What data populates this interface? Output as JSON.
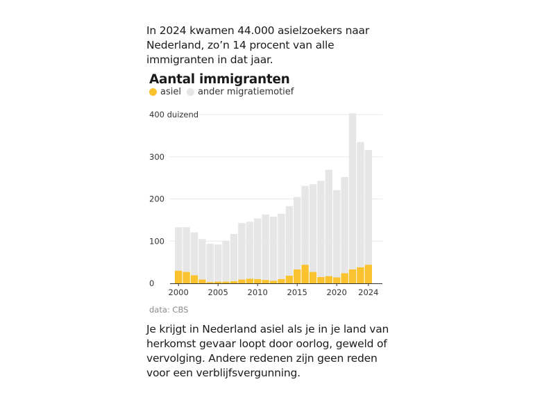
{
  "intro_text": "In 2024 kwamen 44.000 asielzoekers naar Nederland, zo’n 14 procent van alle immigranten in dat jaar.",
  "outro_text": "Je krijgt in Nederland asiel als je in je land van herkomst gevaar loopt door oorlog, geweld of vervolging. Andere redenen zijn geen reden voor een verblijfsvergunning.",
  "source": "data: CBS",
  "colors": {
    "asiel": "#f9c22e",
    "other": "#e6e6e6",
    "grid": "#e8e8e8",
    "axis": "#333333"
  },
  "chart_data": {
    "type": "bar",
    "stacked": true,
    "title": "Aantal immigranten",
    "xlabel": "",
    "ylabel": "",
    "y_unit_label": "duizend",
    "ylim": [
      0,
      400
    ],
    "yticks": [
      0,
      100,
      200,
      300,
      400
    ],
    "yticks_labels": [
      "0",
      "100",
      "200",
      "300",
      "400 duizend"
    ],
    "xticks": [
      2000,
      2005,
      2010,
      2015,
      2020,
      2024
    ],
    "grid": true,
    "legend_position": "top-left",
    "categories": [
      2000,
      2001,
      2002,
      2003,
      2004,
      2005,
      2006,
      2007,
      2008,
      2009,
      2010,
      2011,
      2012,
      2013,
      2014,
      2015,
      2016,
      2017,
      2018,
      2019,
      2020,
      2021,
      2022,
      2023,
      2024
    ],
    "series": [
      {
        "name": "asiel",
        "color": "#f9c22e",
        "values": [
          30,
          27,
          19,
          9,
          3,
          4,
          4,
          5,
          9,
          11,
          10,
          8,
          6,
          10,
          18,
          33,
          44,
          27,
          15,
          17,
          14,
          24,
          33,
          38,
          44
        ]
      },
      {
        "name": "ander migratiemotief",
        "color": "#e6e6e6",
        "values": [
          103,
          106,
          102,
          96,
          91,
          88,
          97,
          112,
          134,
          135,
          144,
          155,
          152,
          155,
          165,
          172,
          187,
          208,
          228,
          252,
          207,
          228,
          370,
          297,
          272
        ]
      }
    ],
    "totals": [
      133,
      133,
      121,
      105,
      94,
      92,
      101,
      117,
      143,
      146,
      154,
      163,
      158,
      165,
      183,
      205,
      231,
      235,
      243,
      269,
      221,
      252,
      403,
      335,
      316
    ]
  }
}
